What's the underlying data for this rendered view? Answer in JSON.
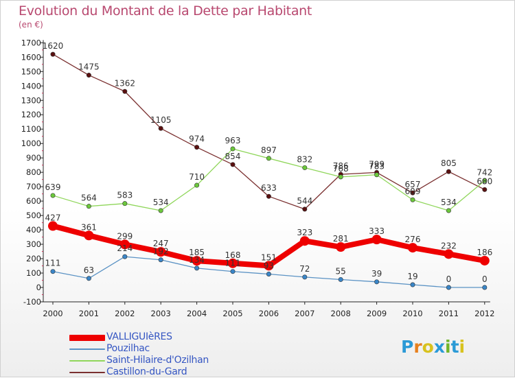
{
  "title": "Evolution du Montant de la Dette par Habitant",
  "subtitle": "(en €)",
  "brand": {
    "letters": [
      "P",
      "r",
      "o",
      "x",
      "i",
      "t",
      "i"
    ],
    "colors": [
      "#2b9ad6",
      "#e7801e",
      "#d8c21e",
      "#2a9ad8",
      "#72b52a",
      "#2b9ad6",
      "#d8c21e"
    ]
  },
  "chart_data": {
    "type": "line",
    "title": "Evolution du Montant de la Dette par Habitant",
    "ylabel": "(en €)",
    "xlabel": "",
    "ylim": [
      -100,
      1700
    ],
    "y_ticks": [
      -100,
      0,
      100,
      200,
      300,
      400,
      500,
      600,
      700,
      800,
      900,
      1000,
      1100,
      1200,
      1300,
      1400,
      1500,
      1600,
      1700
    ],
    "categories": [
      "2000",
      "2001",
      "2002",
      "2003",
      "2004",
      "2005",
      "2006",
      "2007",
      "2008",
      "2009",
      "2010",
      "2011",
      "2012"
    ],
    "grid": false,
    "legend": "bottom-left",
    "series": [
      {
        "name": "Castillon-du-Gard",
        "color": "#7a2f2f",
        "marker": "#5a1010",
        "values": [
          1620,
          1475,
          1362,
          1105,
          974,
          854,
          633,
          544,
          786,
          799,
          657,
          805,
          680
        ],
        "labels": [
          "1620",
          "1475",
          "1362",
          "1105",
          "974",
          "854",
          "633",
          "544",
          "786",
          "799",
          "657",
          "805",
          "680"
        ]
      },
      {
        "name": "Saint-Hilaire-d'Ozilhan",
        "color": "#8fd65a",
        "marker": "#6cc83c",
        "values": [
          639,
          564,
          583,
          534,
          710,
          963,
          897,
          832,
          768,
          783,
          609,
          534,
          742
        ],
        "labels": [
          "639",
          "564",
          "583",
          "534",
          "710",
          "963",
          "897",
          "832",
          "768",
          "783",
          "609",
          "534",
          "742"
        ]
      },
      {
        "name": "Pouzilhac",
        "color": "#5a92c4",
        "marker": "#3a86c8",
        "values": [
          111,
          63,
          214,
          192,
          134,
          111,
          93,
          72,
          55,
          39,
          19,
          0,
          0
        ],
        "labels": [
          "111",
          "63",
          "214",
          "192",
          "134",
          "111",
          "93",
          "72",
          "55",
          "39",
          "19",
          "0",
          "0"
        ]
      },
      {
        "name": "VALLIGUIèRES",
        "color": "#ee0000",
        "marker": "#ee0000",
        "values": [
          427,
          361,
          299,
          247,
          185,
          168,
          151,
          323,
          281,
          333,
          276,
          232,
          186
        ],
        "labels": [
          "427",
          "361",
          "299",
          "247",
          "185",
          "168",
          "151",
          "323",
          "281",
          "333",
          "276",
          "232",
          "186"
        ]
      }
    ]
  }
}
